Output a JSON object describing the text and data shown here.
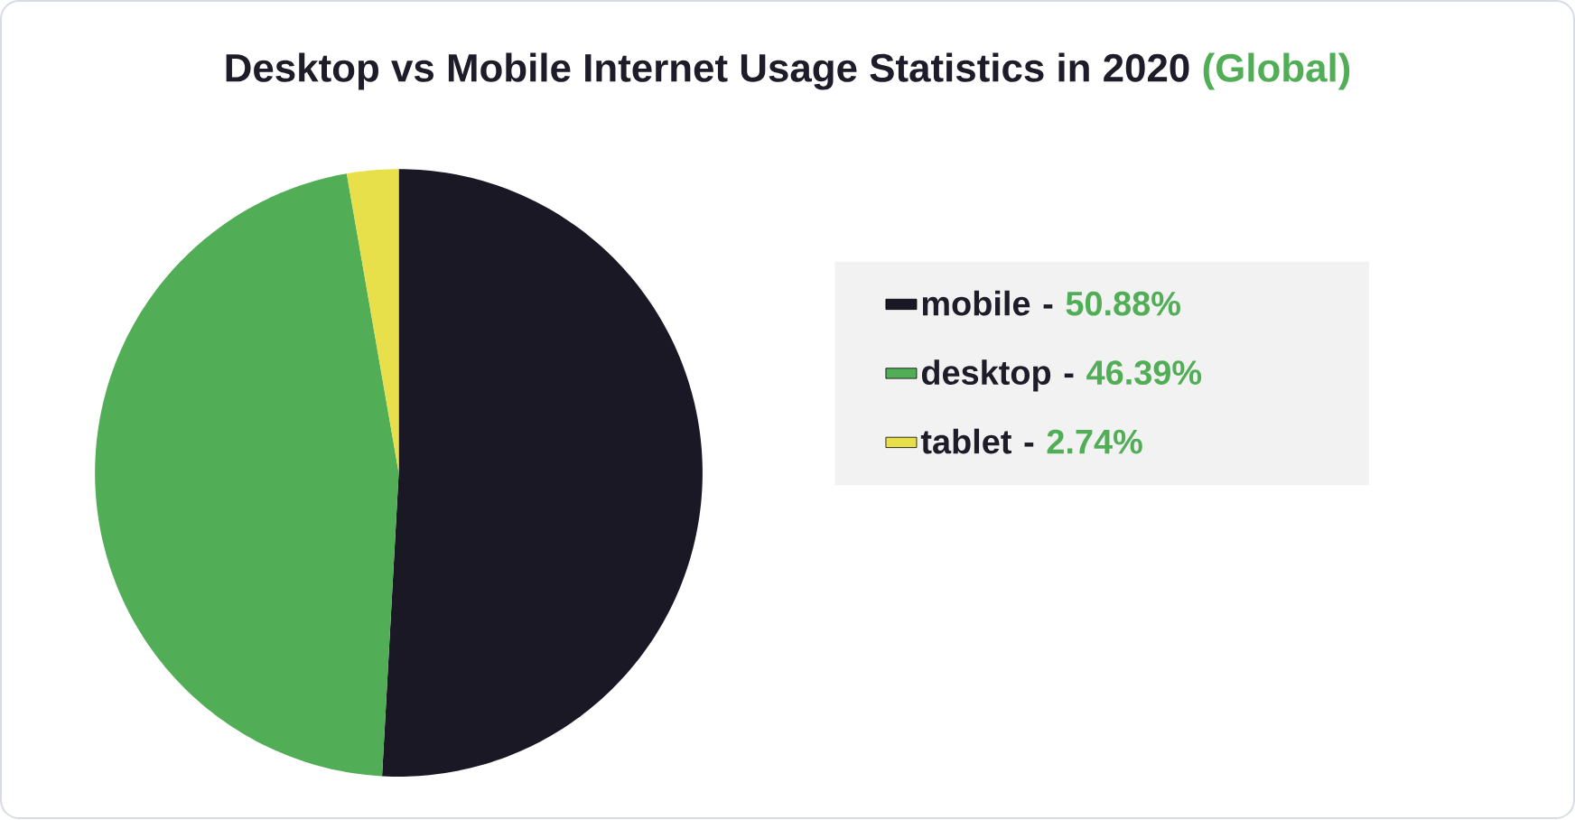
{
  "chart_data": {
    "type": "pie",
    "title": "Desktop vs Mobile Internet Usage Statistics in 2020",
    "subtitle": "(Global)",
    "categories": [
      "mobile -",
      "desktop -",
      "tablet -"
    ],
    "values": [
      50.88,
      46.39,
      2.74
    ],
    "value_labels": [
      "50.88%",
      "46.39%",
      "2.74%"
    ],
    "colors": [
      "#1b1826",
      "#52ad57",
      "#e8e04a"
    ],
    "legend": "right"
  }
}
